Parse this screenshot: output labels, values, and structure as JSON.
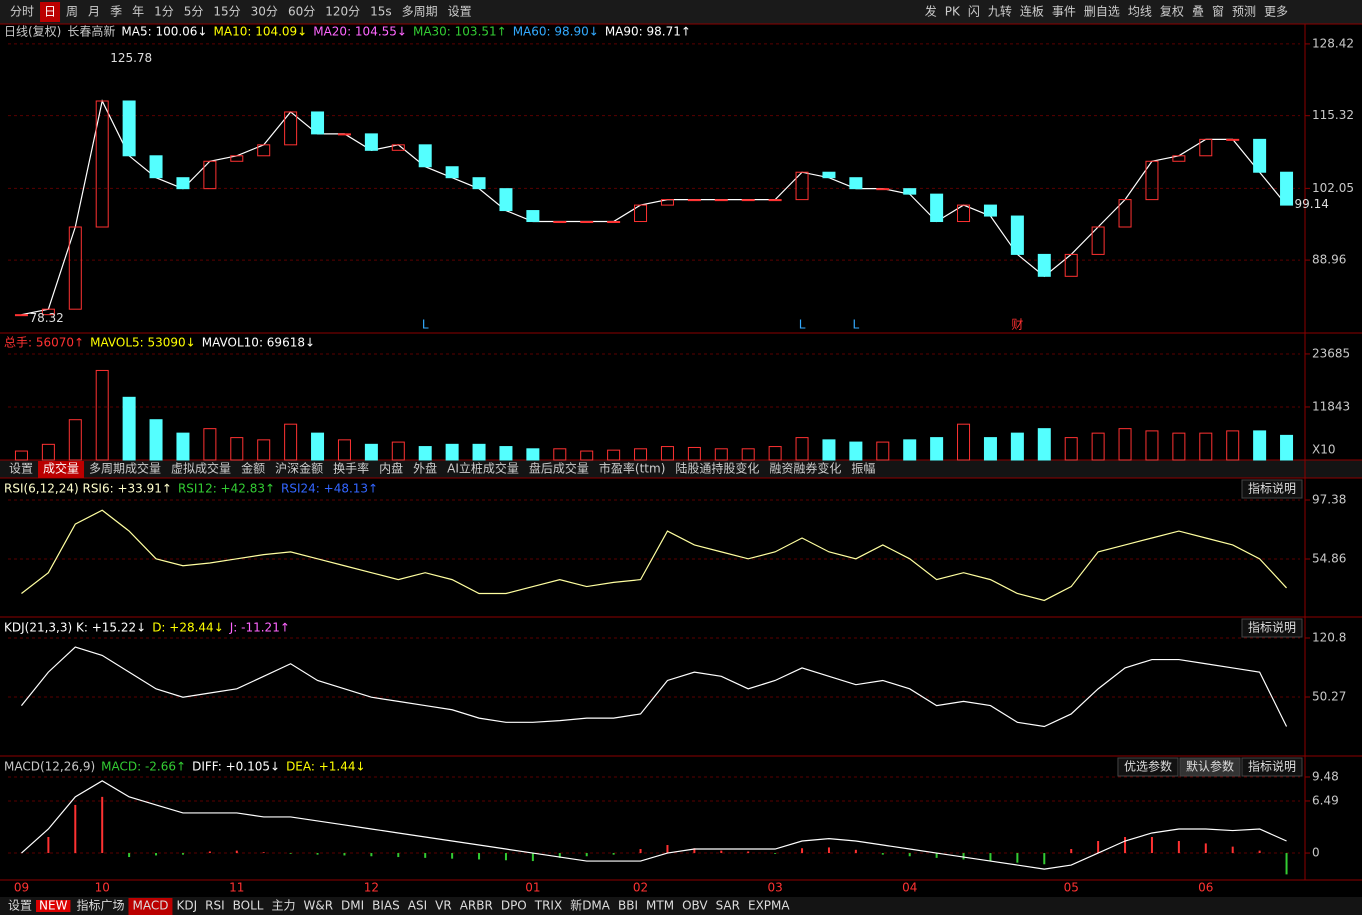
{
  "toolbar": {
    "left": [
      "分时",
      "日",
      "周",
      "月",
      "季",
      "年",
      "1分",
      "5分",
      "15分",
      "30分",
      "60分",
      "120分",
      "15s",
      "多周期",
      "设置"
    ],
    "right": [
      "发",
      "PK",
      "闪",
      "九转",
      "连板",
      "事件",
      "删自选",
      "均线",
      "复权",
      "叠",
      "窗",
      "预测",
      "更多"
    ]
  },
  "chart_data": [
    {
      "type": "candle",
      "name": "price",
      "header": [
        {
          "text": "日线(复权)",
          "color": "#c8c8c8"
        },
        {
          "text": "长春高新",
          "color": "#c8c8c8"
        },
        {
          "text": "MA5: 100.06↓",
          "color": "#ffffff"
        },
        {
          "text": "MA10: 104.09↓",
          "color": "#ffff00"
        },
        {
          "text": "MA20: 104.55↓",
          "color": "#ff66ff"
        },
        {
          "text": "MA30: 103.51↑",
          "color": "#33cc33"
        },
        {
          "text": "MA60: 98.90↓",
          "color": "#33aaff"
        },
        {
          "text": "MA90: 98.71↑",
          "color": "#ffffff"
        }
      ],
      "categories": [
        "09",
        null,
        null,
        "10",
        null,
        null,
        null,
        null,
        "11",
        null,
        null,
        null,
        null,
        "12",
        null,
        null,
        null,
        null,
        null,
        "01",
        null,
        null,
        null,
        "02",
        null,
        null,
        null,
        null,
        "03",
        null,
        null,
        null,
        null,
        "04",
        null,
        null,
        null,
        null,
        null,
        "05",
        null,
        null,
        null,
        null,
        "06",
        null,
        null,
        null
      ],
      "values": [
        79,
        80,
        95,
        118,
        108,
        104,
        102,
        107,
        108,
        110,
        116,
        112,
        112,
        109,
        110,
        106,
        104,
        102,
        98,
        96,
        96,
        96,
        96,
        99,
        100,
        100,
        100,
        100,
        100,
        105,
        104,
        102,
        102,
        101,
        96,
        99,
        97,
        90,
        86,
        90,
        95,
        100,
        107,
        108,
        111,
        111,
        105,
        99
      ],
      "up_color": "#ff3232",
      "down_color": "#54ffff",
      "ylim": [
        76.2,
        129.5
      ],
      "yticks": [
        88.96,
        102.05,
        115.32,
        128.42
      ],
      "annotations": [
        {
          "at": 3,
          "label": "125.78",
          "value": 125.78
        },
        {
          "at": 0,
          "label": "78.32",
          "value": 78.32
        },
        {
          "at": 47,
          "label": "99.14",
          "value": 99.14
        }
      ],
      "markers": [
        {
          "at": 15,
          "label": "L"
        },
        {
          "at": 29,
          "label": "L"
        },
        {
          "at": 31,
          "label": "L"
        },
        {
          "at": 37,
          "label": "财"
        }
      ]
    },
    {
      "type": "bar",
      "name": "volume",
      "header": [
        {
          "text": "总手: 56070↑",
          "color": "#ff3232"
        },
        {
          "text": "MAVOL5: 53090↓",
          "color": "#ffff00"
        },
        {
          "text": "MAVOL10: 69618↓",
          "color": "#ffffff"
        }
      ],
      "values": [
        2000,
        3500,
        9000,
        20000,
        14000,
        9000,
        6000,
        7000,
        5000,
        4500,
        8000,
        6000,
        4500,
        3500,
        4000,
        3000,
        3500,
        3500,
        3000,
        2500,
        2500,
        2000,
        2200,
        2500,
        3000,
        2800,
        2500,
        2500,
        3000,
        5000,
        4500,
        4000,
        4000,
        4500,
        5000,
        8000,
        5000,
        6000,
        7000,
        5000,
        6000,
        7000,
        6500,
        6000,
        6000,
        6500,
        6500,
        5500
      ],
      "ylim": [
        0,
        26800
      ],
      "yticks": [
        11843,
        23685
      ],
      "unit": "X10"
    },
    {
      "type": "line",
      "name": "rsi",
      "header": [
        {
          "text": "RSI(6,12,24) RSI6: +33.91↑",
          "color": "#ffffcc"
        },
        {
          "text": "RSI12: +42.83↑",
          "color": "#33cc33"
        },
        {
          "text": "RSI24: +48.13↑",
          "color": "#3366ff"
        }
      ],
      "color": "#ffffa0",
      "values": [
        30,
        45,
        80,
        90,
        75,
        55,
        50,
        52,
        55,
        58,
        60,
        55,
        50,
        45,
        40,
        45,
        40,
        30,
        30,
        35,
        40,
        35,
        38,
        40,
        75,
        65,
        60,
        55,
        60,
        70,
        60,
        55,
        65,
        55,
        40,
        45,
        40,
        30,
        25,
        35,
        60,
        65,
        70,
        75,
        70,
        65,
        55,
        34
      ],
      "ylim": [
        14.5,
        111.8
      ],
      "yticks": [
        54.86,
        97.38
      ],
      "button": "指标说明"
    },
    {
      "type": "line",
      "name": "kdj",
      "header": [
        {
          "text": "KDJ(21,3,3) K: +15.22↓",
          "color": "#ffffff"
        },
        {
          "text": "D: +28.44↓",
          "color": "#ffff00"
        },
        {
          "text": "J: -11.21↑",
          "color": "#ff66ff"
        }
      ],
      "color": "#ffffff",
      "values": [
        40,
        80,
        110,
        100,
        80,
        60,
        50,
        55,
        60,
        75,
        90,
        70,
        60,
        50,
        45,
        40,
        35,
        25,
        20,
        20,
        22,
        25,
        25,
        30,
        70,
        80,
        75,
        60,
        70,
        85,
        75,
        65,
        70,
        60,
        40,
        45,
        40,
        20,
        15,
        30,
        60,
        85,
        95,
        95,
        90,
        85,
        80,
        15
      ],
      "ylim": [
        -15.5,
        144.7
      ],
      "yticks": [
        50.27,
        120.8
      ],
      "button": "指标说明"
    },
    {
      "type": "macd",
      "name": "macd",
      "header": [
        {
          "text": "MACD(12,26,9)",
          "color": "#c8c8c8"
        },
        {
          "text": "MACD: -2.66↑",
          "color": "#33cc33"
        },
        {
          "text": "DIFF: +0.105↓",
          "color": "#ffffff"
        },
        {
          "text": "DEA: +1.44↓",
          "color": "#ffff00"
        }
      ],
      "series": [
        {
          "name": "DIFF",
          "color": "#ffffff",
          "values": [
            0,
            3,
            7,
            9,
            7,
            6,
            5,
            5,
            5,
            4.5,
            4.5,
            4,
            3.5,
            3,
            2.5,
            2,
            1.5,
            1,
            0.5,
            0,
            -0.5,
            -1,
            -1,
            -1,
            0,
            0.5,
            0.5,
            0.5,
            0.5,
            1.5,
            1.8,
            1.5,
            1,
            0.5,
            0,
            -0.5,
            -1,
            -1.5,
            -2,
            -1.5,
            0,
            1.5,
            2.5,
            3,
            3,
            2.8,
            3,
            1.5
          ]
        },
        {
          "name": "MACD",
          "up_color": "#ff3232",
          "down_color": "#33cc33",
          "values": [
            0,
            2,
            6,
            7,
            -0.5,
            -0.3,
            -0.2,
            0.2,
            0.3,
            0.1,
            -0.1,
            -0.2,
            -0.3,
            -0.4,
            -0.5,
            -0.6,
            -0.7,
            -0.8,
            -0.9,
            -1,
            -0.6,
            -0.4,
            -0.2,
            0.5,
            1,
            0.6,
            0.3,
            0.2,
            -0.1,
            0.6,
            0.7,
            0.4,
            -0.2,
            -0.4,
            -0.6,
            -0.8,
            -1,
            -1.2,
            -1.4,
            0.5,
            1.5,
            2,
            2,
            1.5,
            1.2,
            0.8,
            0.3,
            -2.66
          ]
        }
      ],
      "ylim": [
        -3.36,
        11.97
      ],
      "yticks": [
        0,
        6.49,
        9.48
      ],
      "buttons": [
        "优选参数",
        "默认参数",
        "指标说明"
      ]
    }
  ],
  "volume_tabs": [
    "设置",
    "成交量",
    "多周期成交量",
    "虚拟成交量",
    "金额",
    "沪深金额",
    "换手率",
    "内盘",
    "外盘",
    "AI立桩成交量",
    "盘后成交量",
    "市盈率(ttm)",
    "陆股通持股变化",
    "融资融券变化",
    "振幅"
  ],
  "bottom_tabs": {
    "badge": "NEW",
    "items": [
      "设置",
      "指标广场",
      "MACD",
      "KDJ",
      "RSI",
      "BOLL",
      "主力",
      "W&R",
      "DMI",
      "BIAS",
      "ASI",
      "VR",
      "ARBR",
      "DPO",
      "TRIX",
      "新DMA",
      "BBI",
      "MTM",
      "OBV",
      "SAR",
      "EXPMA"
    ]
  }
}
